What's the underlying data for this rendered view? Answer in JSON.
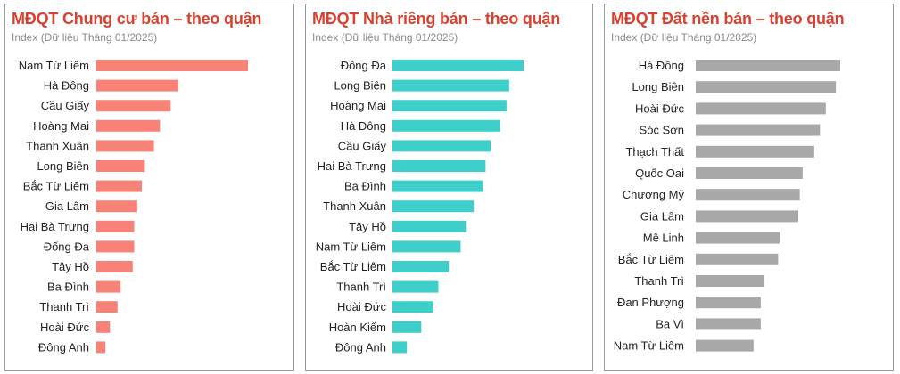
{
  "chart_data": [
    {
      "type": "bar",
      "title": "MĐQT Chung cư bán – theo quận",
      "subtitle": "Index (Dữ liệu Tháng 01/2025)",
      "color": "#f88278",
      "categories": [
        "Nam Từ Liêm",
        "Hà Đông",
        "Cầu Giấy",
        "Hoàng Mai",
        "Thanh Xuân",
        "Long Biên",
        "Bắc Từ Liêm",
        "Gia Lâm",
        "Hai Bà Trưng",
        "Đống Đa",
        "Tây Hồ",
        "Ba Đình",
        "Thanh Trì",
        "Hoài Đức",
        "Đông Anh"
      ],
      "values": [
        100,
        54,
        49,
        42,
        38,
        32,
        30,
        27,
        25,
        25,
        24,
        16,
        14,
        9,
        6
      ]
    },
    {
      "type": "bar",
      "title": "MĐQT Nhà riêng bán – theo quận",
      "subtitle": "Index (Dữ liệu Tháng 01/2025)",
      "color": "#3ecfcb",
      "categories": [
        "Đống Đa",
        "Long Biên",
        "Hoàng Mai",
        "Hà Đông",
        "Cầu Giấy",
        "Hai Bà Trưng",
        "Ba Đình",
        "Thanh Xuân",
        "Tây Hồ",
        "Nam Từ Liêm",
        "Bắc Từ Liêm",
        "Thanh Trì",
        "Hoài Đức",
        "Hoàn Kiếm",
        "Đông Anh"
      ],
      "values": [
        100,
        89,
        87,
        82,
        75,
        71,
        69,
        62,
        56,
        52,
        43,
        35,
        31,
        22,
        11
      ]
    },
    {
      "type": "bar",
      "title": "MĐQT Đất nền bán – theo quận",
      "subtitle": "Index (Dữ liệu Tháng 01/2025)",
      "color": "#a8a8a8",
      "categories": [
        "Hà Đông",
        "Long Biên",
        "Hoài Đức",
        "Sóc Sơn",
        "Thạch Thất",
        "Quốc Oai",
        "Chương Mỹ",
        "Gia Lâm",
        "Mê Linh",
        "Bắc Từ Liêm",
        "Thanh Trì",
        "Đan Phượng",
        "Ba Vì",
        "Nam Từ Liêm"
      ],
      "values": [
        100,
        97,
        90,
        86,
        82,
        74,
        72,
        71,
        58,
        57,
        47,
        45,
        45,
        40
      ]
    }
  ]
}
